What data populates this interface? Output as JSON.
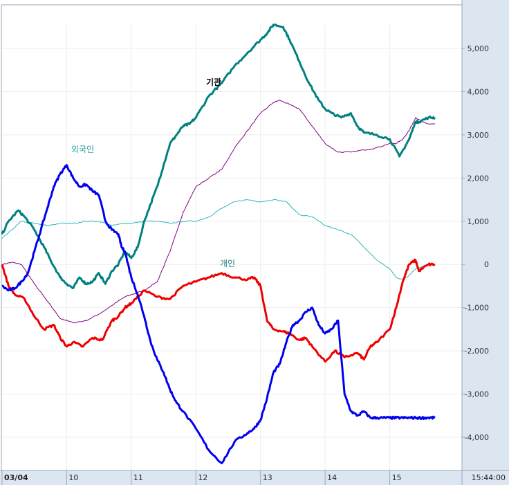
{
  "chart_data": {
    "type": "line",
    "x_labels": [
      "03/04",
      "10",
      "11",
      "12",
      "13",
      "14",
      "15"
    ],
    "time_label": "15:44:00",
    "ylim": [
      -4800,
      5800
    ],
    "yticks": [
      5000,
      4000,
      3000,
      2000,
      1000,
      0,
      -1000,
      -2000,
      -3000,
      -4000
    ],
    "ytick_labels": [
      "5,000",
      "4,000",
      "3,000",
      "2,000",
      "1,000",
      "0",
      "-1,000",
      "-2,000",
      "-3,000",
      "-4,000"
    ],
    "x_range": [
      9,
      16
    ],
    "series": [
      {
        "name": "기관",
        "color": "#008080",
        "width": 3,
        "label_color": "#000000",
        "x": [
          9.0,
          9.1,
          9.25,
          9.35,
          9.5,
          9.65,
          9.75,
          9.9,
          10.0,
          10.1,
          10.2,
          10.3,
          10.4,
          10.5,
          10.6,
          10.7,
          10.8,
          10.9,
          11.0,
          11.1,
          11.2,
          11.3,
          11.4,
          11.5,
          11.6,
          11.7,
          11.8,
          11.9,
          12.0,
          12.2,
          12.4,
          12.6,
          12.8,
          13.0,
          13.1,
          13.2,
          13.35,
          13.45,
          13.6,
          13.75,
          13.9,
          14.0,
          14.1,
          14.25,
          14.4,
          14.5,
          14.6,
          14.8,
          15.0,
          15.15,
          15.3,
          15.4,
          15.45,
          15.6,
          15.7
        ],
        "y": [
          700,
          1000,
          1250,
          1100,
          800,
          400,
          100,
          -300,
          -450,
          -550,
          -300,
          -450,
          -400,
          -200,
          -450,
          -150,
          0,
          300,
          150,
          400,
          1000,
          1400,
          1800,
          2300,
          2800,
          3000,
          3200,
          3250,
          3400,
          3900,
          4200,
          4600,
          4900,
          5200,
          5350,
          5550,
          5500,
          5200,
          4700,
          4200,
          3800,
          3600,
          3500,
          3400,
          3500,
          3200,
          3050,
          3000,
          2900,
          2500,
          2900,
          3300,
          3300,
          3400,
          3400
        ]
      },
      {
        "name": "외국인",
        "color": "#2ab7bb",
        "width": 1,
        "label_color": "#2aa0a0",
        "x": [
          9.0,
          9.15,
          9.3,
          9.5,
          9.7,
          9.9,
          10.1,
          10.3,
          10.5,
          10.7,
          10.9,
          11.0,
          11.2,
          11.4,
          11.6,
          11.8,
          12.0,
          12.2,
          12.4,
          12.6,
          12.8,
          13.0,
          13.2,
          13.4,
          13.5,
          13.6,
          13.8,
          14.0,
          14.2,
          14.4,
          14.6,
          14.8,
          15.0,
          15.1,
          15.2,
          15.3,
          15.4,
          15.5,
          15.6,
          15.7
        ],
        "y": [
          600,
          800,
          1000,
          950,
          900,
          950,
          950,
          1000,
          1000,
          900,
          950,
          950,
          1000,
          1000,
          950,
          1000,
          1000,
          1100,
          1300,
          1450,
          1500,
          1450,
          1500,
          1450,
          1300,
          1150,
          1100,
          900,
          800,
          700,
          400,
          100,
          -100,
          -300,
          -350,
          -250,
          -100,
          -50,
          0,
          0
        ]
      },
      {
        "name": "",
        "color": "#800080",
        "width": 1,
        "label_color": "#800080",
        "x": [
          9.0,
          9.15,
          9.3,
          9.5,
          9.7,
          9.9,
          10.1,
          10.3,
          10.5,
          10.7,
          10.9,
          11.0,
          11.2,
          11.4,
          11.6,
          11.8,
          12.0,
          12.2,
          12.4,
          12.6,
          12.8,
          13.0,
          13.2,
          13.3,
          13.45,
          13.6,
          13.8,
          14.0,
          14.2,
          14.4,
          14.6,
          14.8,
          15.0,
          15.1,
          15.2,
          15.3,
          15.4,
          15.5,
          15.6,
          15.7
        ],
        "y": [
          0,
          50,
          0,
          -450,
          -850,
          -1250,
          -1350,
          -1300,
          -1150,
          -950,
          -750,
          -700,
          -600,
          -400,
          300,
          1200,
          1800,
          2000,
          2200,
          2700,
          3100,
          3500,
          3750,
          3800,
          3700,
          3600,
          3200,
          2800,
          2600,
          2600,
          2650,
          2700,
          2800,
          2800,
          2900,
          3100,
          3400,
          3300,
          3250,
          3250
        ]
      },
      {
        "name": "개인",
        "color": "#ee0000",
        "width": 3,
        "label_color": "#208080",
        "x": [
          9.0,
          9.1,
          9.2,
          9.35,
          9.5,
          9.65,
          9.8,
          9.9,
          10.0,
          10.1,
          10.25,
          10.4,
          10.55,
          10.7,
          10.8,
          10.9,
          11.0,
          11.2,
          11.4,
          11.6,
          11.8,
          12.0,
          12.2,
          12.4,
          12.6,
          12.8,
          12.9,
          13.0,
          13.1,
          13.2,
          13.35,
          13.45,
          13.6,
          13.7,
          13.8,
          14.0,
          14.15,
          14.3,
          14.5,
          14.6,
          14.7,
          14.8,
          15.0,
          15.1,
          15.2,
          15.3,
          15.4,
          15.45,
          15.6,
          15.7
        ],
        "y": [
          0,
          -500,
          -700,
          -800,
          -1200,
          -1500,
          -1400,
          -1700,
          -1900,
          -1800,
          -1900,
          -1700,
          -1750,
          -1300,
          -1200,
          -1000,
          -900,
          -600,
          -750,
          -800,
          -500,
          -400,
          -300,
          -200,
          -300,
          -350,
          -300,
          -500,
          -1300,
          -1500,
          -1550,
          -1600,
          -1750,
          -1700,
          -1900,
          -2250,
          -2000,
          -2150,
          -2050,
          -2200,
          -1900,
          -1800,
          -1500,
          -1000,
          -400,
          0,
          100,
          -150,
          0,
          0
        ]
      },
      {
        "name": "",
        "color": "#0000ee",
        "width": 3,
        "label_color": "#0000ee",
        "x": [
          9.0,
          9.1,
          9.2,
          9.3,
          9.4,
          9.5,
          9.6,
          9.7,
          9.8,
          9.9,
          10.0,
          10.1,
          10.2,
          10.3,
          10.4,
          10.5,
          10.6,
          10.7,
          10.8,
          10.85,
          10.9,
          11.0,
          11.1,
          11.2,
          11.3,
          11.4,
          11.5,
          11.6,
          11.7,
          11.8,
          12.0,
          12.2,
          12.4,
          12.6,
          12.8,
          12.9,
          13.0,
          13.1,
          13.2,
          13.3,
          13.4,
          13.5,
          13.6,
          13.7,
          13.8,
          13.9,
          14.0,
          14.1,
          14.2,
          14.3,
          14.4,
          14.5,
          14.6,
          14.7,
          14.8,
          14.9,
          15.0,
          15.1,
          15.2,
          15.3,
          15.4,
          15.5,
          15.6,
          15.7
        ],
        "y": [
          -500,
          -600,
          -550,
          -400,
          -200,
          300,
          800,
          1300,
          1800,
          2100,
          2300,
          2000,
          1800,
          1850,
          1700,
          1600,
          1000,
          800,
          700,
          400,
          300,
          -300,
          -700,
          -1200,
          -1800,
          -2200,
          -2500,
          -2900,
          -3200,
          -3400,
          -3800,
          -4300,
          -4600,
          -4100,
          -3900,
          -3800,
          -3600,
          -3100,
          -2500,
          -2300,
          -1800,
          -1400,
          -1300,
          -1100,
          -1000,
          -1400,
          -1600,
          -1500,
          -1300,
          -3000,
          -3400,
          -3500,
          -3400,
          -3550,
          -3550,
          -3550,
          -3550,
          -3550,
          -3550,
          -3550,
          -3550,
          -3550,
          -3550,
          -3550
        ]
      }
    ]
  }
}
